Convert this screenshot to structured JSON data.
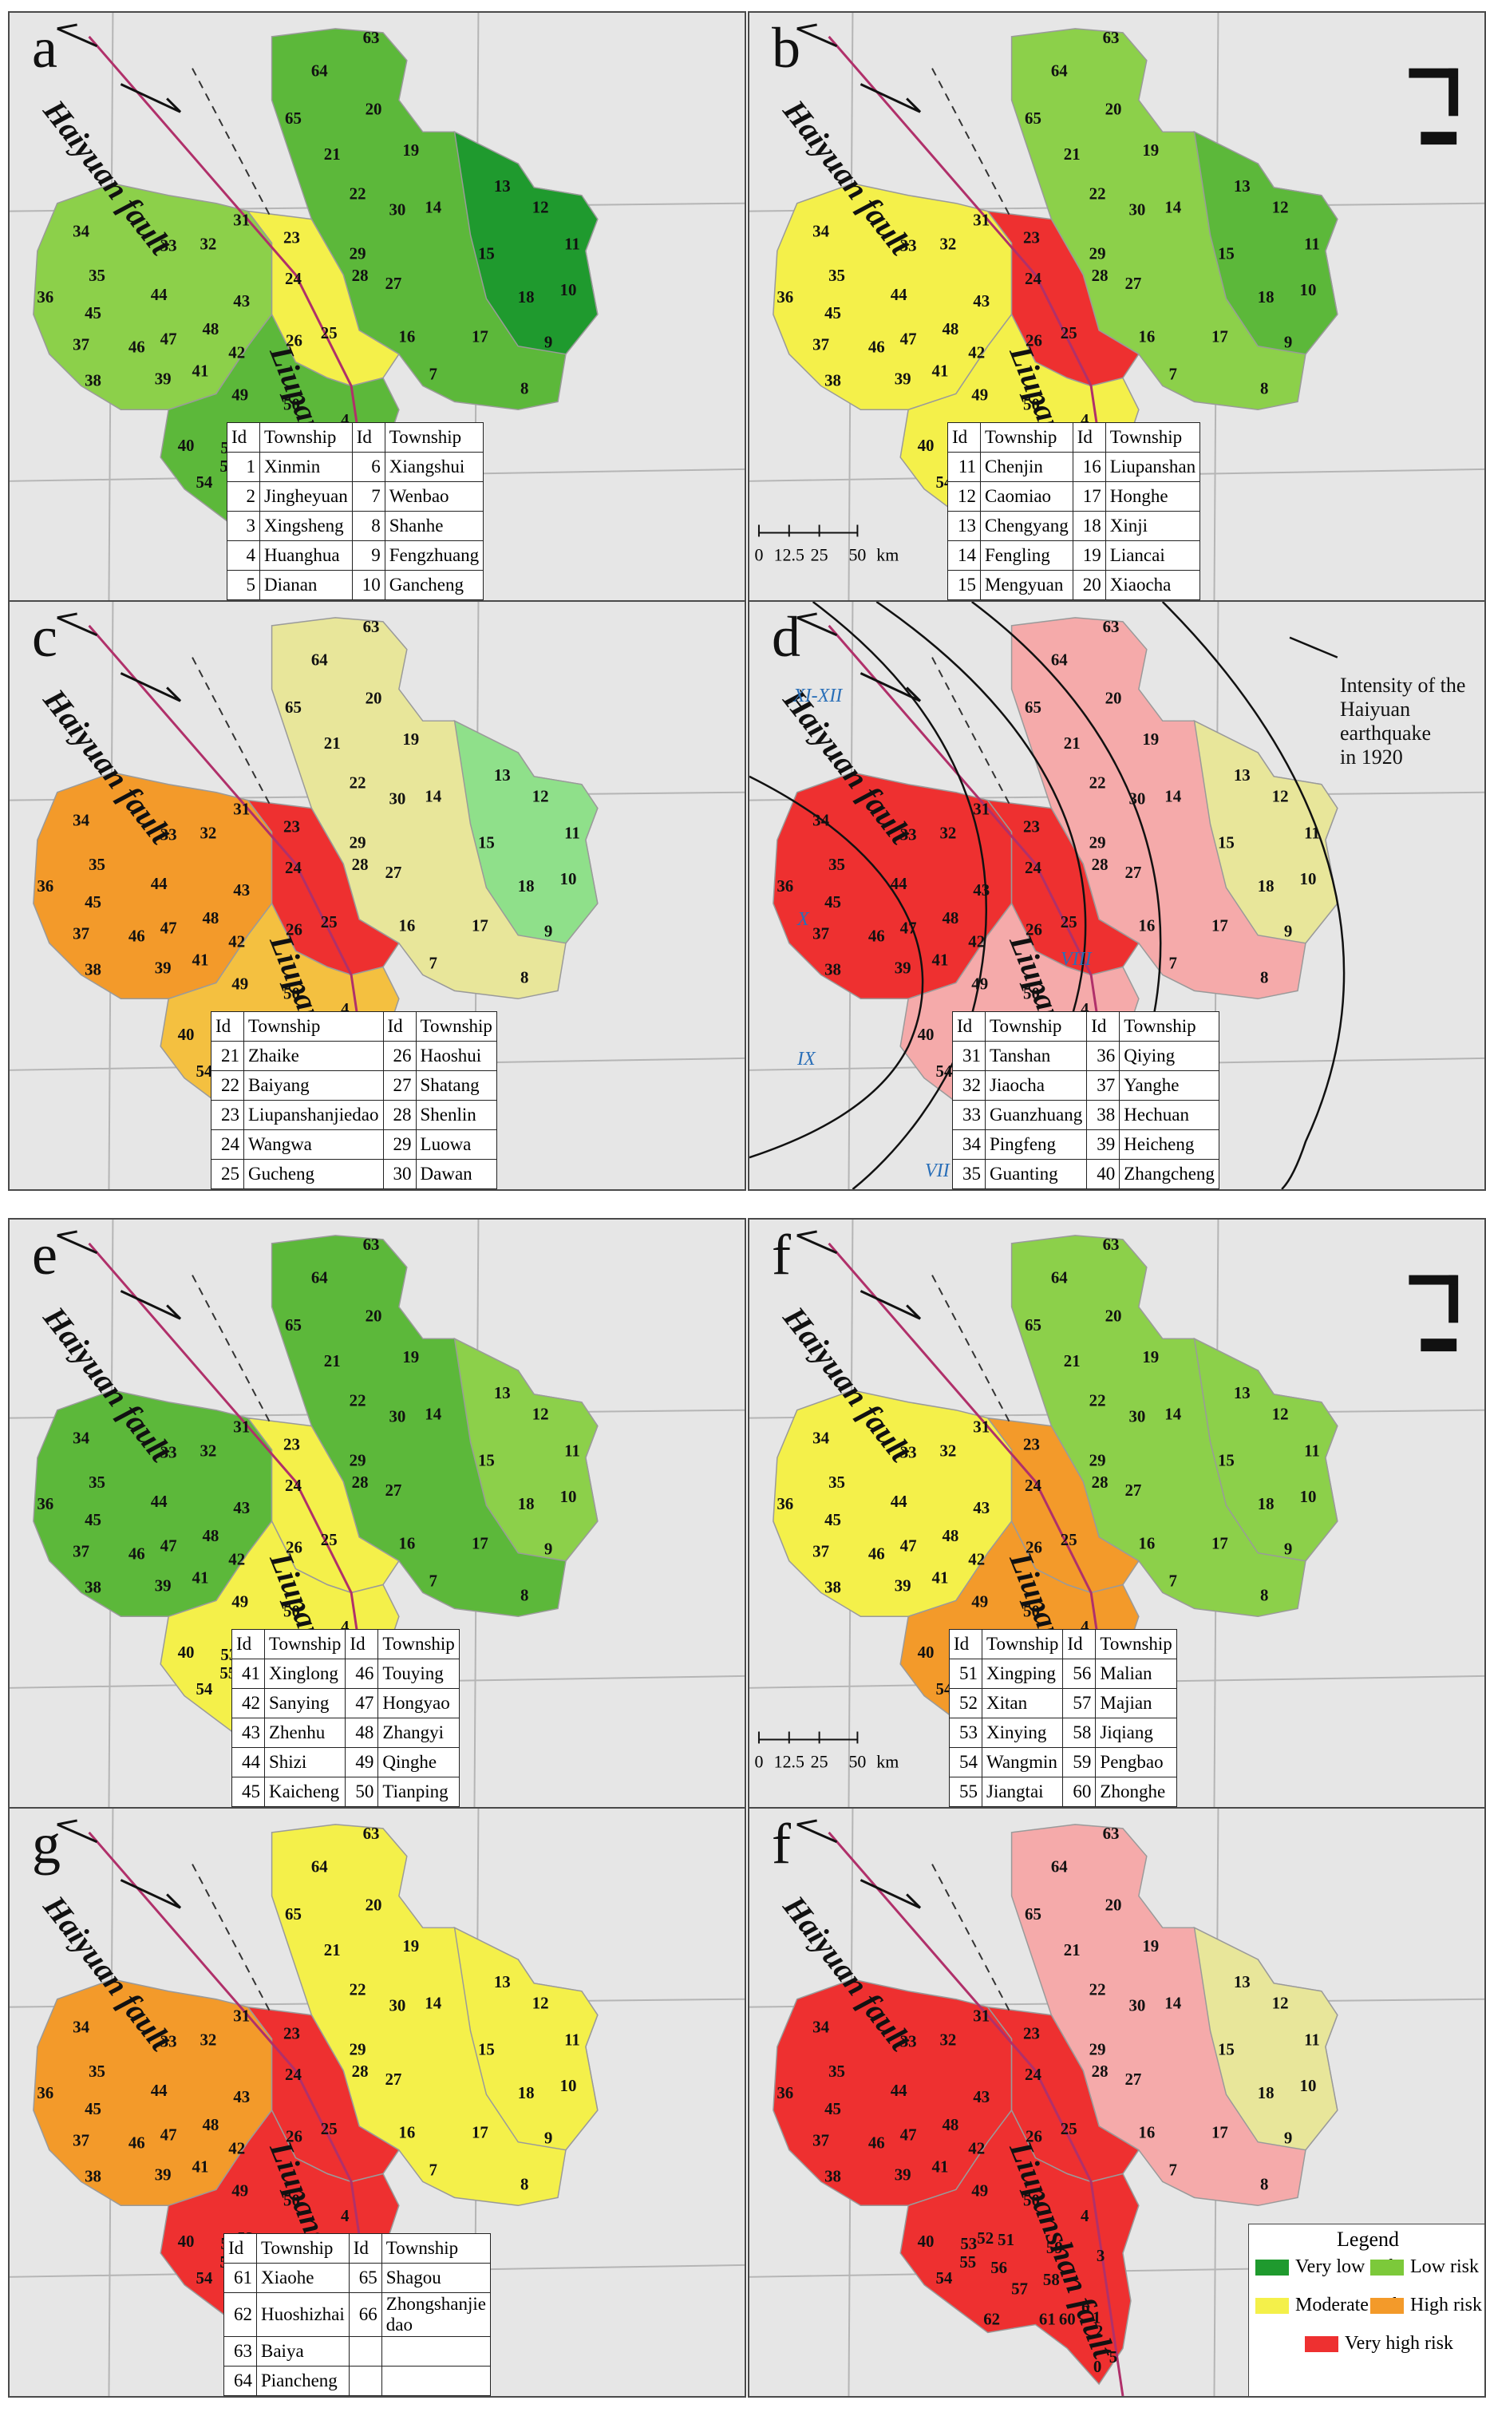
{
  "panels": [
    {
      "label": "a",
      "colors": "A"
    },
    {
      "label": "b",
      "colors": "B"
    },
    {
      "label": "c",
      "colors": "C"
    },
    {
      "label": "d",
      "colors": "D"
    },
    {
      "label": "e",
      "colors": "E"
    },
    {
      "label": "f",
      "colors": "F"
    },
    {
      "label": "g",
      "colors": "G"
    },
    {
      "label": "f",
      "colors": "H"
    }
  ],
  "faults": {
    "haiyuan": "Haiyuan fault",
    "liupanshan": "Liupanshan fault"
  },
  "table_header": {
    "id": "Id",
    "township": "Township"
  },
  "tables": [
    [
      [
        "1",
        "Xinmin",
        "6",
        "Xiangshui"
      ],
      [
        "2",
        "Jingheyuan",
        "7",
        "Wenbao"
      ],
      [
        "3",
        "Xingsheng",
        "8",
        "Shanhe"
      ],
      [
        "4",
        "Huanghua",
        "9",
        "Fengzhuang"
      ],
      [
        "5",
        "Dianan",
        "10",
        "Gancheng"
      ]
    ],
    [
      [
        "11",
        "Chenjin",
        "16",
        "Liupanshan"
      ],
      [
        "12",
        "Caomiao",
        "17",
        "Honghe"
      ],
      [
        "13",
        "Chengyang",
        "18",
        "Xinji"
      ],
      [
        "14",
        "Fengling",
        "19",
        "Liancai"
      ],
      [
        "15",
        "Mengyuan",
        "20",
        "Xiaocha"
      ]
    ],
    [
      [
        "21",
        "Zhaike",
        "26",
        "Haoshui"
      ],
      [
        "22",
        "Baiyang",
        "27",
        "Shatang"
      ],
      [
        "23",
        "Liupanshanjiedao",
        "28",
        "Shenlin"
      ],
      [
        "24",
        "Wangwa",
        "29",
        "Luowa"
      ],
      [
        "25",
        "Gucheng",
        "30",
        "Dawan"
      ]
    ],
    [
      [
        "31",
        "Tanshan",
        "36",
        "Qiying"
      ],
      [
        "32",
        "Jiaocha",
        "37",
        "Yanghe"
      ],
      [
        "33",
        "Guanzhuang",
        "38",
        "Hechuan"
      ],
      [
        "34",
        "Pingfeng",
        "39",
        "Heicheng"
      ],
      [
        "35",
        "Guanting",
        "40",
        "Zhangcheng"
      ]
    ],
    [
      [
        "41",
        "Xinglong",
        "46",
        "Touying"
      ],
      [
        "42",
        "Sanying",
        "47",
        "Hongyao"
      ],
      [
        "43",
        "Zhenhu",
        "48",
        "Zhangyi"
      ],
      [
        "44",
        "Shizi",
        "49",
        "Qinghe"
      ],
      [
        "45",
        "Kaicheng",
        "50",
        "Tianping"
      ]
    ],
    [
      [
        "51",
        "Xingping",
        "56",
        "Malian"
      ],
      [
        "52",
        "Xitan",
        "57",
        "Majian"
      ],
      [
        "53",
        "Xinying",
        "58",
        "Jiqiang"
      ],
      [
        "54",
        "Wangmin",
        "59",
        "Pengbao"
      ],
      [
        "55",
        "Jiangtai",
        "60",
        "Zhonghe"
      ]
    ],
    [
      [
        "61",
        "Xiaohe",
        "65",
        "Shagou"
      ],
      [
        "62",
        "Huoshizhai",
        "66",
        "Zhongshanjie\ndao"
      ],
      [
        "63",
        "Baiya",
        "",
        " "
      ],
      [
        "64",
        "Piancheng",
        "",
        ""
      ]
    ]
  ],
  "scale": {
    "ticks": [
      "0",
      "12.5",
      "25",
      "50"
    ],
    "unit": "km"
  },
  "intensity_note": "Intensity of the Haiyuan earthquake in 1920",
  "intensity_lines": [
    "Intensity of the",
    "Haiyuan earthquake",
    "in 1920"
  ],
  "intensity_zones": [
    "XI-XII",
    "X",
    "IX",
    "VIII",
    "VII"
  ],
  "legend": {
    "title": "Legend",
    "items": [
      {
        "label": "Very low risk",
        "color": "#1f9a2e"
      },
      {
        "label": "Low risk",
        "color": "#7cc93a"
      },
      {
        "label": "Moderate risk",
        "color": "#f4f04a"
      },
      {
        "label": "High risk",
        "color": "#f39a2a"
      },
      {
        "label": "Very high risk",
        "color": "#ee3030"
      }
    ]
  },
  "palettes": {
    "A": [
      "#1f9a2e",
      "#5cb83a",
      "#8cd04a",
      "#f4f04a",
      "#f39a2a"
    ],
    "B": [
      "#1f9a2e",
      "#5cb83a",
      "#8cd04a",
      "#f4f04a",
      "#f39a2a",
      "#ee3030"
    ],
    "C": [
      "#8fe08a",
      "#e8e69a",
      "#f4c040",
      "#f39a2a",
      "#ee3030"
    ],
    "D": [
      "#a8e8a0",
      "#e8e69a",
      "#f5aaaa",
      "#ee3030"
    ],
    "E": [
      "#1f9a2e",
      "#5cb83a",
      "#8cd04a",
      "#f4f04a",
      "#f39a2a"
    ],
    "F": [
      "#5cb83a",
      "#8cd04a",
      "#f4f04a",
      "#f39a2a",
      "#ee3030"
    ],
    "G": [
      "#1f9a2e",
      "#f4f04a",
      "#f39a2a",
      "#ee3030"
    ],
    "H": [
      "#e8e69a",
      "#f5aaaa",
      "#ee3030"
    ]
  }
}
